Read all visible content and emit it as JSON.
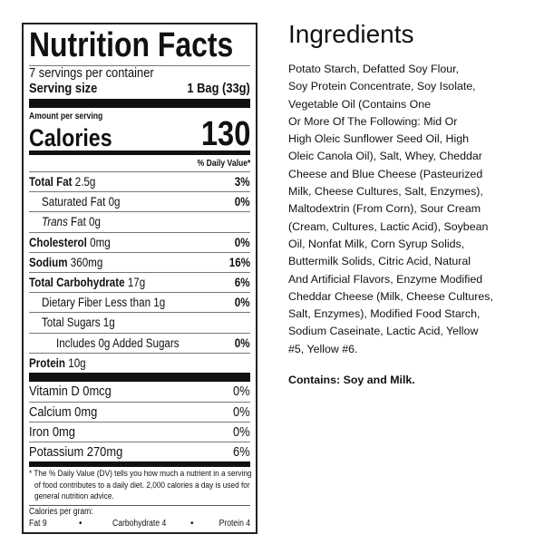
{
  "label": {
    "title": "Nutrition Facts",
    "servings": "7 servings per container",
    "serving_size_label": "Serving size",
    "serving_size_value": "1 Bag (33g)",
    "amount_per_serving": "Amount per serving",
    "calories_label": "Calories",
    "calories_value": "130",
    "dv_header": "% Daily Value*",
    "nutrients": [
      {
        "name": "Total Fat",
        "amount": "2.5g",
        "dv": "3%",
        "bold": true,
        "indent": 0
      },
      {
        "name": "Saturated Fat",
        "amount": "0g",
        "dv": "0%",
        "bold": false,
        "indent": 1
      },
      {
        "name": "Trans",
        "amount": "Fat 0g",
        "dv": "",
        "bold": false,
        "indent": 1,
        "italic": true
      },
      {
        "name": "Cholesterol",
        "amount": "0mg",
        "dv": "0%",
        "bold": true,
        "indent": 0
      },
      {
        "name": "Sodium",
        "amount": "360mg",
        "dv": "16%",
        "bold": true,
        "indent": 0
      },
      {
        "name": "Total Carbohydrate",
        "amount": "17g",
        "dv": "6%",
        "bold": true,
        "indent": 0
      },
      {
        "name": "Dietary Fiber Less than",
        "amount": "1g",
        "dv": "0%",
        "bold": false,
        "indent": 1
      },
      {
        "name": "Total Sugars",
        "amount": "1g",
        "dv": "",
        "bold": false,
        "indent": 1
      },
      {
        "name": "Includes 0g Added Sugars",
        "amount": "",
        "dv": "0%",
        "bold": false,
        "indent": 2
      },
      {
        "name": "Protein",
        "amount": "10g",
        "dv": "",
        "bold": true,
        "indent": 0
      }
    ],
    "vitamins": [
      {
        "name": "Vitamin D 0mcg",
        "dv": "0%"
      },
      {
        "name": "Calcium 0mg",
        "dv": "0%"
      },
      {
        "name": "Iron 0mg",
        "dv": "0%"
      },
      {
        "name": "Potassium 270mg",
        "dv": "6%"
      }
    ],
    "footnote": [
      "* The % Daily Value (DV) tells you how much a nutrient in a serving",
      "of food contributes to a daily diet. 2,000 calories a day is used for",
      "general nutrition advice."
    ],
    "cal_per_gram": "Calories per gram:",
    "cpg_fat": "Fat 9",
    "cpg_carb": "Carbohydrate 4",
    "cpg_protein": "Protein 4",
    "bullet": "•"
  },
  "ingredients": {
    "title": "Ingredients",
    "lines": [
      "Potato Starch, Defatted Soy Flour,",
      "Soy Protein Concentrate, Soy Isolate,",
      "Vegetable Oil (Contains One",
      "Or More Of The Following: Mid Or",
      "High Oleic Sunflower Seed Oil, High",
      "Oleic Canola Oil), Salt, Whey, Cheddar",
      "Cheese and Blue Cheese (Pasteurized",
      "Milk, Cheese Cultures, Salt, Enzymes),",
      "Maltodextrin (From Corn), Sour Cream",
      "(Cream, Cultures, Lactic Acid), Soybean",
      "Oil, Nonfat Milk, Corn Syrup Solids,",
      "Buttermilk Solids, Citric Acid, Natural",
      "And Artificial Flavors, Enzyme Modified",
      "Cheddar Cheese (Milk, Cheese Cultures,",
      "Salt, Enzymes), Modified Food Starch,",
      "Sodium Caseinate, Lactic Acid, Yellow",
      "#5, Yellow #6."
    ],
    "contains": "Contains: Soy and Milk."
  }
}
